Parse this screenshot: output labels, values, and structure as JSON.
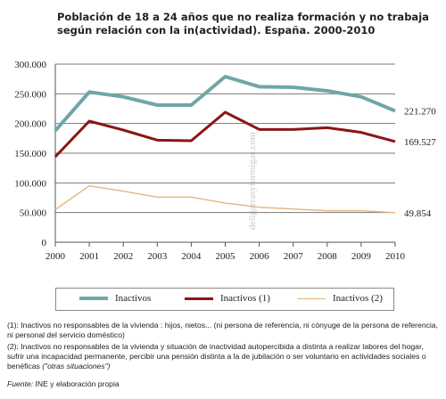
{
  "title": "Población de 18 a 24 años que no realiza formación y no trabaja según relación con la in(actividad). España. 2000-2010",
  "watermark": "deligarrasyformigas.com",
  "chart_data": {
    "type": "line",
    "x": [
      2000,
      2001,
      2002,
      2003,
      2004,
      2005,
      2006,
      2007,
      2008,
      2009,
      2010
    ],
    "ylim": [
      0,
      300000
    ],
    "y_ticks": [
      "0",
      "50.000",
      "100.000",
      "150.000",
      "200.000",
      "250.000",
      "300.000"
    ],
    "y_tick_values": [
      0,
      50000,
      100000,
      150000,
      200000,
      250000,
      300000
    ],
    "grid": true,
    "legend_position": "bottom",
    "series": [
      {
        "name": "Inactivos",
        "color": "#6fa6a6",
        "values": [
          188000,
          253000,
          245000,
          231000,
          231000,
          279000,
          262000,
          261000,
          255000,
          245000,
          221270
        ],
        "end_label": "221.270"
      },
      {
        "name": "Inactivos (1)",
        "color": "#8b1515",
        "values": [
          144000,
          204000,
          189000,
          172000,
          171000,
          219000,
          190000,
          190000,
          193000,
          185000,
          169527
        ],
        "end_label": "169.527"
      },
      {
        "name": "Inactivos (2)",
        "color": "#e3b27a",
        "values": [
          55000,
          95000,
          86000,
          76000,
          76000,
          66000,
          59000,
          56000,
          53000,
          53000,
          49854
        ],
        "end_label": "49.854"
      }
    ]
  },
  "notes": {
    "note1": "(1): Inactivos no responsables de la vivienda : hijos, nietos... (ni persona de referencia, ni cónyuge de la persona de referencia, ni personal del servicio doméstico)",
    "note2_main": "(2): Inactivos no responsables de la vivienda y situación de inactividad autopercibida a distinta a realizar labores del hogar, sufrir una incapacidad permanente, percibir una pensión distinta a la de jubilación o ser voluntario en actividades sociales o benéficas",
    "note2_italic": "(\"otras situaciones\")"
  },
  "source": {
    "label": "Fuente:",
    "text": "INE y elaboración propia"
  }
}
